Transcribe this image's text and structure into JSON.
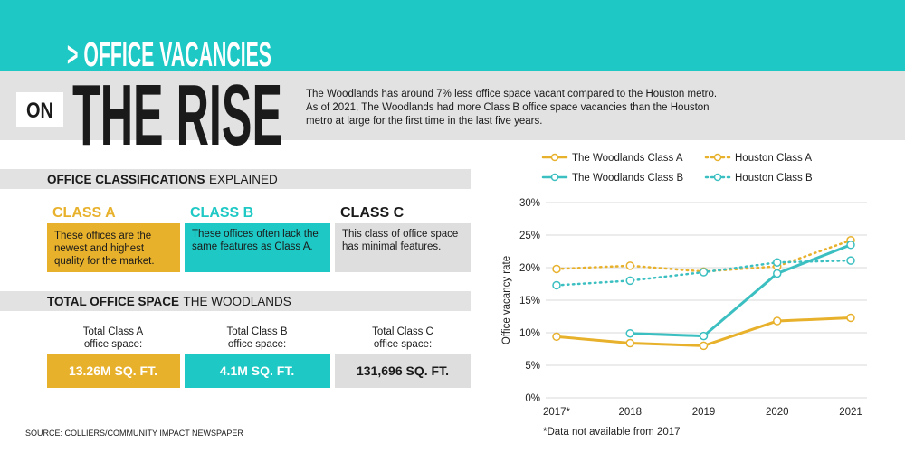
{
  "header": {
    "kicker": "> OFFICE VACANCIES",
    "on": "ON",
    "title": "THE RISE",
    "description": [
      "The Woodlands has around 7% less office space vacant compared to the Houston metro.",
      "As of 2021, The Woodlands had more Class B office space vacancies than the Houston",
      "metro at large for the first time in the last five years."
    ]
  },
  "classifications": {
    "title": "OFFICE CLASSIFICATIONS",
    "title_suffix": "EXPLAINED",
    "classes": [
      {
        "name": "CLASS A",
        "lines": [
          "These offices are the",
          "newest and highest",
          "quality for the market."
        ]
      },
      {
        "name": "CLASS B",
        "lines": [
          "These offices often lack the",
          "same features as Class A."
        ]
      },
      {
        "name": "CLASS C",
        "lines": [
          "This class of office space",
          "has minimal features."
        ]
      }
    ]
  },
  "totals": {
    "title": "TOTAL OFFICE SPACE",
    "title_suffix": "THE WOODLANDS",
    "items": [
      {
        "label": [
          "Total Class A",
          "office space:"
        ],
        "value": "13.26M SQ. FT."
      },
      {
        "label": [
          "Total Class B",
          "office space:"
        ],
        "value": "4.1M SQ. FT."
      },
      {
        "label": [
          "Total Class C",
          "office space:"
        ],
        "value": "131,696 SQ. FT."
      }
    ]
  },
  "source": "SOURCE: COLLIERS/COMMUNITY IMPACT NEWSPAPER",
  "chart_data": {
    "type": "line",
    "y_label": "Office vacancy rate",
    "note": "*Data not available from 2017",
    "categories": [
      "2017*",
      "2018",
      "2019",
      "2020",
      "2021"
    ],
    "ylim": [
      0,
      30
    ],
    "yticks": [
      {
        "value": 0,
        "label": "0%"
      },
      {
        "value": 5,
        "label": "5%"
      },
      {
        "value": 10,
        "label": "10%"
      },
      {
        "value": 15,
        "label": "15%"
      },
      {
        "value": 20,
        "label": "20%"
      },
      {
        "value": 25,
        "label": "25%"
      },
      {
        "value": 30,
        "label": "30%"
      }
    ],
    "grid": true,
    "series": [
      {
        "name": "The Woodlands Class A",
        "color": "#e8b12c",
        "dotted": false,
        "values": [
          9.4,
          8.4,
          8.0,
          11.8,
          12.3
        ]
      },
      {
        "name": "Houston Class A",
        "color": "#e8b12c",
        "dotted": true,
        "values": [
          19.8,
          20.3,
          19.4,
          20.2,
          24.2
        ]
      },
      {
        "name": "The Woodlands Class B",
        "color": "#3bbfc1",
        "dotted": false,
        "values": [
          null,
          9.9,
          9.5,
          19.1,
          23.5
        ]
      },
      {
        "name": "Houston Class B",
        "color": "#3bbfc1",
        "dotted": true,
        "values": [
          17.3,
          18.0,
          19.3,
          20.8,
          21.1
        ]
      }
    ]
  }
}
